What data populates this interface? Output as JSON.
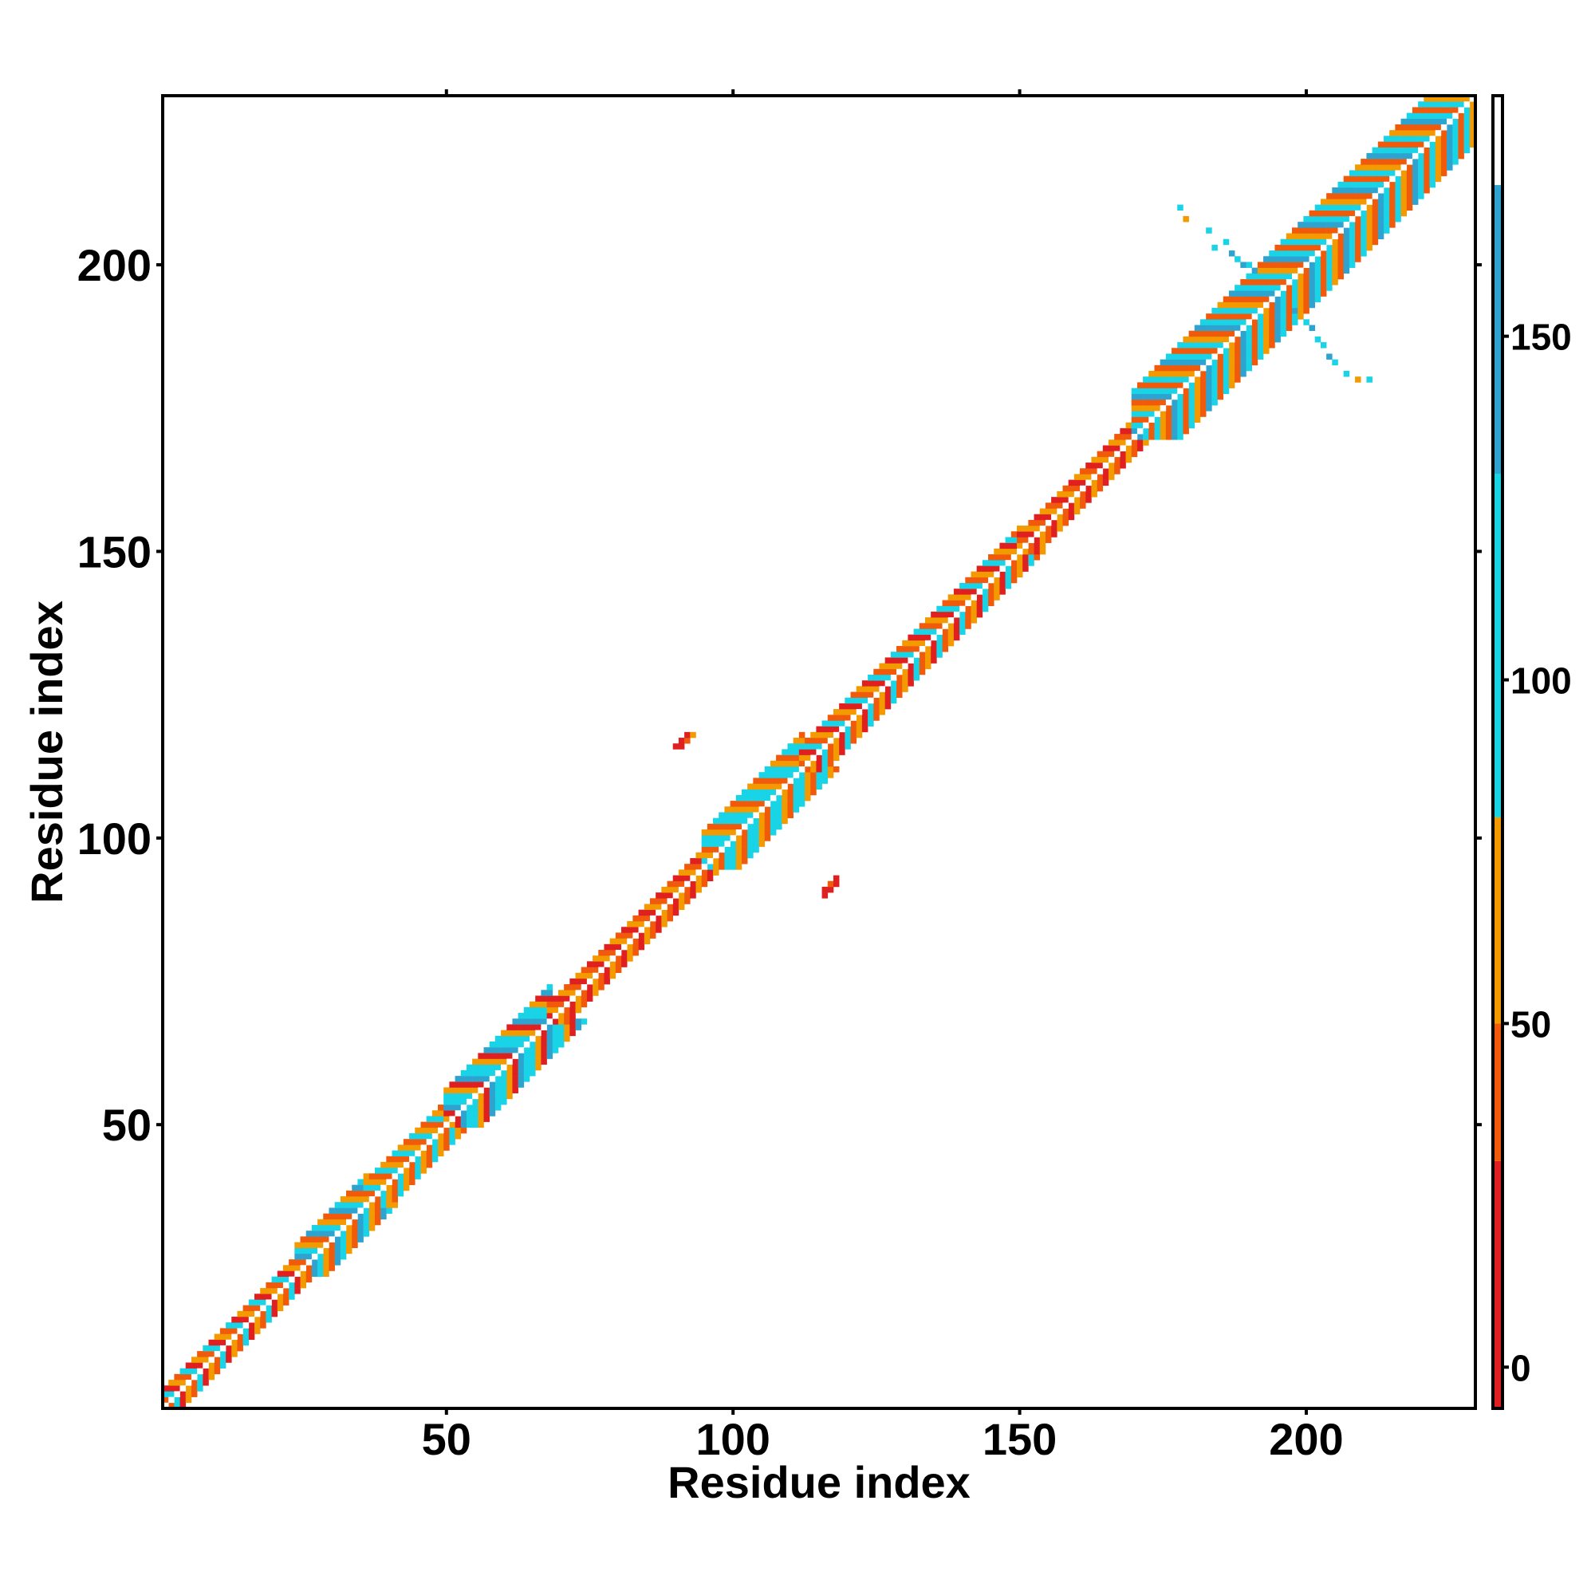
{
  "chart_data": {
    "type": "heatmap",
    "title": "",
    "xlabel": "Residue index",
    "ylabel": "Residue index",
    "xlim": [
      1,
      229
    ],
    "ylim": [
      1,
      229
    ],
    "xticks": [
      50,
      100,
      150,
      200
    ],
    "yticks": [
      50,
      100,
      150,
      200
    ],
    "colorbar": {
      "range": [
        -6,
        185
      ],
      "ticks": [
        0,
        50,
        100,
        150
      ],
      "bands": [
        {
          "from": -6,
          "to": 30,
          "color": "#e02020"
        },
        {
          "from": 30,
          "to": 50,
          "color": "#f05a0a"
        },
        {
          "from": 50,
          "to": 80,
          "color": "#f39a00"
        },
        {
          "from": 80,
          "to": 130,
          "color": "#19d3e6"
        },
        {
          "from": 130,
          "to": 172,
          "color": "#2ea3cf"
        },
        {
          "from": 172,
          "to": 185,
          "color": "#ffffff"
        }
      ]
    },
    "diagonal": {
      "from": 1,
      "to": 229,
      "value": 185
    },
    "near_diagonal_regions": [
      {
        "start": 1,
        "end": 24,
        "halfwidth": 3,
        "values": [
          20,
          60,
          40,
          90
        ]
      },
      {
        "start": 24,
        "end": 36,
        "halfwidth": 5,
        "values": [
          95,
          60,
          30,
          140
        ]
      },
      {
        "start": 36,
        "end": 50,
        "halfwidth": 4,
        "values": [
          90,
          60,
          40
        ]
      },
      {
        "start": 50,
        "end": 68,
        "halfwidth": 6,
        "values": [
          90,
          60,
          25,
          140,
          95
        ]
      },
      {
        "start": 68,
        "end": 95,
        "halfwidth": 3,
        "values": [
          20,
          60,
          40
        ]
      },
      {
        "start": 95,
        "end": 112,
        "halfwidth": 6,
        "values": [
          95,
          60,
          30,
          95
        ]
      },
      {
        "start": 112,
        "end": 150,
        "halfwidth": 4,
        "values": [
          90,
          40,
          60,
          20
        ]
      },
      {
        "start": 150,
        "end": 170,
        "halfwidth": 3,
        "values": [
          20,
          60,
          40
        ]
      },
      {
        "start": 170,
        "end": 229,
        "halfwidth": 8,
        "values": [
          95,
          60,
          30,
          140,
          95,
          40
        ]
      }
    ],
    "off_diagonal_contacts": [
      {
        "i": 90,
        "j": 116,
        "value": 10
      },
      {
        "i": 91,
        "j": 116,
        "value": 15
      },
      {
        "i": 91,
        "j": 117,
        "value": 10
      },
      {
        "i": 92,
        "j": 117,
        "value": 40
      },
      {
        "i": 92,
        "j": 118,
        "value": 10
      },
      {
        "i": 93,
        "j": 118,
        "value": 60
      },
      {
        "i": 116,
        "j": 90,
        "value": 10
      },
      {
        "i": 116,
        "j": 91,
        "value": 15
      },
      {
        "i": 117,
        "j": 91,
        "value": 10
      },
      {
        "i": 117,
        "j": 92,
        "value": 40
      },
      {
        "i": 118,
        "j": 92,
        "value": 10
      },
      {
        "i": 118,
        "j": 93,
        "value": 15
      },
      {
        "i": 178,
        "j": 210,
        "value": 95
      },
      {
        "i": 179,
        "j": 208,
        "value": 60
      },
      {
        "i": 183,
        "j": 206,
        "value": 95
      },
      {
        "i": 184,
        "j": 203,
        "value": 95
      },
      {
        "i": 186,
        "j": 204,
        "value": 95
      },
      {
        "i": 187,
        "j": 202,
        "value": 140
      },
      {
        "i": 188,
        "j": 201,
        "value": 95
      },
      {
        "i": 189,
        "j": 200,
        "value": 140
      },
      {
        "i": 190,
        "j": 200,
        "value": 95
      },
      {
        "i": 191,
        "j": 199,
        "value": 140
      },
      {
        "i": 198,
        "j": 192,
        "value": 140
      },
      {
        "i": 200,
        "j": 190,
        "value": 95
      },
      {
        "i": 201,
        "j": 189,
        "value": 140
      },
      {
        "i": 202,
        "j": 187,
        "value": 95
      },
      {
        "i": 203,
        "j": 186,
        "value": 95
      },
      {
        "i": 204,
        "j": 184,
        "value": 140
      },
      {
        "i": 205,
        "j": 183,
        "value": 95
      },
      {
        "i": 207,
        "j": 181,
        "value": 95
      },
      {
        "i": 209,
        "j": 180,
        "value": 60
      },
      {
        "i": 211,
        "j": 180,
        "value": 95
      }
    ]
  }
}
